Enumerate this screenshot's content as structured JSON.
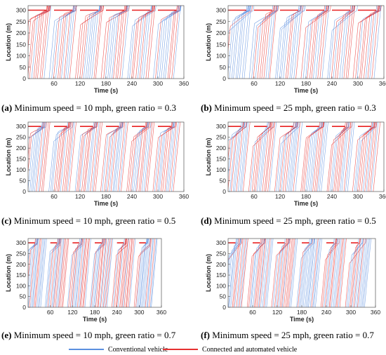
{
  "colors": {
    "conventional": "#5b8fe0",
    "connected": "#e63030",
    "lane": "#e82020"
  },
  "legend": {
    "conventional_label": "Conventional vehicle",
    "connected_label": "Connected and automated vehicle"
  },
  "captions": [
    {
      "tag": "(a)",
      "text": " Minimum speed = 10 mph, green ratio = 0.3"
    },
    {
      "tag": "(b)",
      "text": " Minimum speed = 25 mph, green ratio = 0.3"
    },
    {
      "tag": "(c)",
      "text": " Minimum speed = 10 mph, green ratio = 0.5"
    },
    {
      "tag": "(d)",
      "text": " Minimum speed = 25 mph, green ratio = 0.5"
    },
    {
      "tag": "(e)",
      "text": " Minimum speed = 10 mph, green ratio = 0.7"
    },
    {
      "tag": "(f)",
      "text": " Minimum speed = 25 mph, green ratio = 0.7"
    }
  ],
  "chart_data": [
    {
      "id": "a",
      "type": "line",
      "xlabel": "Time (s)",
      "ylabel": "Location (m)",
      "xlim": [
        0,
        360
      ],
      "ylim": [
        0,
        320
      ],
      "xticks": [
        60,
        120,
        180,
        240,
        300,
        360
      ],
      "yticks": [
        0,
        50,
        100,
        150,
        200,
        250,
        300
      ],
      "signal_location": 300,
      "cycle": 60,
      "green_ratio": 0.3,
      "min_speed_mph": 10,
      "series": [
        {
          "name": "Conventional vehicle"
        },
        {
          "name": "Connected and automated vehicle"
        }
      ]
    },
    {
      "id": "b",
      "type": "line",
      "xlabel": "Time (s)",
      "ylabel": "Location (m)",
      "xlim": [
        0,
        360
      ],
      "ylim": [
        0,
        320
      ],
      "xticks": [
        60,
        120,
        180,
        240,
        300,
        360
      ],
      "yticks": [
        0,
        50,
        100,
        150,
        200,
        250,
        300
      ],
      "signal_location": 300,
      "cycle": 60,
      "green_ratio": 0.3,
      "min_speed_mph": 25,
      "series": [
        {
          "name": "Conventional vehicle"
        },
        {
          "name": "Connected and automated vehicle"
        }
      ]
    },
    {
      "id": "c",
      "type": "line",
      "xlabel": "Time (s)",
      "ylabel": "Location (m)",
      "xlim": [
        0,
        360
      ],
      "ylim": [
        0,
        320
      ],
      "xticks": [
        60,
        120,
        180,
        240,
        300,
        360
      ],
      "yticks": [
        0,
        50,
        100,
        150,
        200,
        250,
        300
      ],
      "signal_location": 300,
      "cycle": 60,
      "green_ratio": 0.5,
      "min_speed_mph": 10,
      "series": [
        {
          "name": "Conventional vehicle"
        },
        {
          "name": "Connected and automated vehicle"
        }
      ]
    },
    {
      "id": "d",
      "type": "line",
      "xlabel": "Time (s)",
      "ylabel": "Location (m)",
      "xlim": [
        0,
        360
      ],
      "ylim": [
        0,
        320
      ],
      "xticks": [
        60,
        120,
        180,
        240,
        300,
        360
      ],
      "yticks": [
        0,
        50,
        100,
        150,
        200,
        250,
        300
      ],
      "signal_location": 300,
      "cycle": 60,
      "green_ratio": 0.5,
      "min_speed_mph": 25,
      "series": [
        {
          "name": "Conventional vehicle"
        },
        {
          "name": "Connected and automated vehicle"
        }
      ]
    },
    {
      "id": "e",
      "type": "line",
      "xlabel": "Time (s)",
      "ylabel": "Location (m)",
      "xlim": [
        0,
        360
      ],
      "ylim": [
        0,
        320
      ],
      "xticks": [
        60,
        120,
        180,
        240,
        300,
        360
      ],
      "yticks": [
        0,
        50,
        100,
        150,
        200,
        250,
        300
      ],
      "signal_location": 300,
      "cycle": 60,
      "green_ratio": 0.7,
      "min_speed_mph": 10,
      "series": [
        {
          "name": "Conventional vehicle"
        },
        {
          "name": "Connected and automated vehicle"
        }
      ]
    },
    {
      "id": "f",
      "type": "line",
      "xlabel": "Time (s)",
      "ylabel": "Location (m)",
      "xlim": [
        0,
        360
      ],
      "ylim": [
        0,
        320
      ],
      "xticks": [
        60,
        120,
        180,
        240,
        300,
        360
      ],
      "yticks": [
        0,
        50,
        100,
        150,
        200,
        250,
        300
      ],
      "signal_location": 300,
      "cycle": 60,
      "green_ratio": 0.7,
      "min_speed_mph": 25,
      "series": [
        {
          "name": "Conventional vehicle"
        },
        {
          "name": "Connected and automated vehicle"
        }
      ]
    }
  ]
}
